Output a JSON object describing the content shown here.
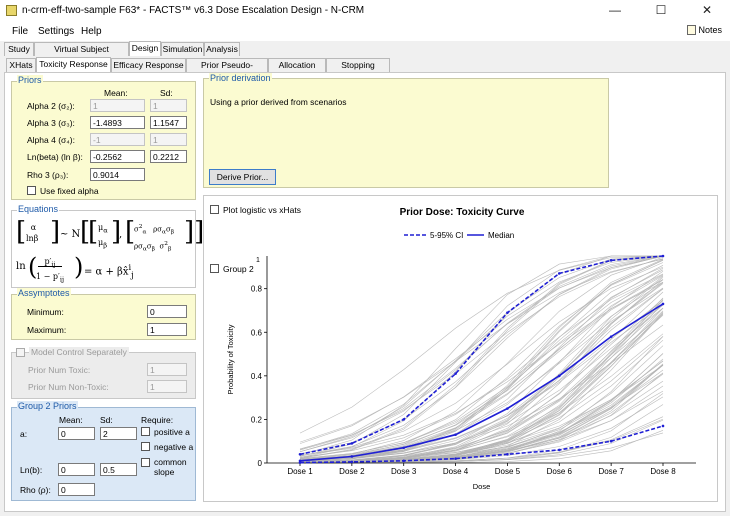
{
  "window": {
    "title": "n-crm-eff-two-sample F63* - FACTS™ v6.3 Dose Escalation Design - N-CRM",
    "minimize": "—",
    "maximize": "☐",
    "close": "✕"
  },
  "menu": {
    "file": "File",
    "settings": "Settings",
    "help": "Help",
    "notes": "Notes"
  },
  "tabs_top": [
    "Study",
    "Virtual Subject Response",
    "Design",
    "Simulation",
    "Analysis"
  ],
  "tabs_sub": [
    "XHats",
    "Toxicity Response",
    "Efficacy Response",
    "Prior Pseudo-subjects",
    "Allocation Rule",
    "Stopping Criteria"
  ],
  "priors": {
    "title": "Priors",
    "mean_header": "Mean:",
    "sd_header": "Sd:",
    "rows": [
      {
        "label": "Alpha 2 (σ₂):",
        "mean": "1",
        "sd": "1",
        "enabled": false
      },
      {
        "label": "Alpha 3 (σ₃):",
        "mean": "-1.4893",
        "sd": "1.1547",
        "enabled": true
      },
      {
        "label": "Alpha 4 (σ₄):",
        "mean": "-1",
        "sd": "1",
        "enabled": false
      },
      {
        "label": "Ln(beta) (ln β):",
        "mean": "-0.2562",
        "sd": "0.2212",
        "enabled": true
      }
    ],
    "rho_label": "Rho 3 (ρ₃):",
    "rho_value": "0.9014",
    "fixed_alpha": "Use fixed alpha"
  },
  "equations": {
    "title": "Equations"
  },
  "asymptotes": {
    "title": "Assymptotes",
    "min_label": "Minimum:",
    "min_value": "0",
    "max_label": "Maximum:",
    "max_value": "1"
  },
  "model_control": {
    "label": "Model Control Separately",
    "toxic_label": "Prior Num Toxic:",
    "toxic_value": "1",
    "nontoxic_label": "Prior Num Non-Toxic:",
    "nontoxic_value": "1"
  },
  "group2": {
    "title": "Group 2 Priors",
    "mean_header": "Mean:",
    "sd_header": "Sd:",
    "require_header": "Require:",
    "a_label": "a:",
    "a_mean": "0",
    "a_sd": "2",
    "lnb_label": "Ln(b):",
    "lnb_mean": "0",
    "lnb_sd": "0.5",
    "rho_label": "Rho (ρ):",
    "rho_value": "0",
    "positive": "positive a",
    "negative": "negative a",
    "common_slope": "common slope"
  },
  "prior_derivation": {
    "title": "Prior derivation",
    "text": "Using a prior derived from scenarios",
    "button": "Derive Prior..."
  },
  "chart_opts": {
    "plot_logistic": "Plot logistic vs xHats",
    "group2": "Group 2",
    "superscript": "1"
  },
  "colors": {
    "band": "#1f1fd4",
    "median": "#1f1fd4",
    "samples": "#b4b4b4",
    "accent": "#1e5aa8"
  },
  "chart_data": {
    "type": "line",
    "title": "Prior Dose: Toxicity Curve",
    "xlabel": "Dose",
    "ylabel": "Probability of Toxicity",
    "categories": [
      "Dose 1",
      "Dose 2",
      "Dose 3",
      "Dose 4",
      "Dose 5",
      "Dose 6",
      "Dose 7",
      "Dose 8"
    ],
    "ylim": [
      0,
      0.95
    ],
    "yticks": [
      0,
      0.2,
      0.4,
      0.6,
      0.8
    ],
    "legend_position": "top",
    "series": [
      {
        "name": "5-95% CI",
        "style": "dashed",
        "values": [
          0.04,
          0.09,
          0.2,
          0.41,
          0.69,
          0.87,
          0.93,
          0.95
        ]
      },
      {
        "name": "Median",
        "style": "solid",
        "values": [
          0.01,
          0.03,
          0.07,
          0.13,
          0.25,
          0.4,
          0.58,
          0.73
        ]
      },
      {
        "name": "",
        "style": "dashed",
        "values": [
          0.002,
          0.005,
          0.01,
          0.02,
          0.04,
          0.06,
          0.1,
          0.17
        ]
      }
    ],
    "samples_count": 90
  }
}
